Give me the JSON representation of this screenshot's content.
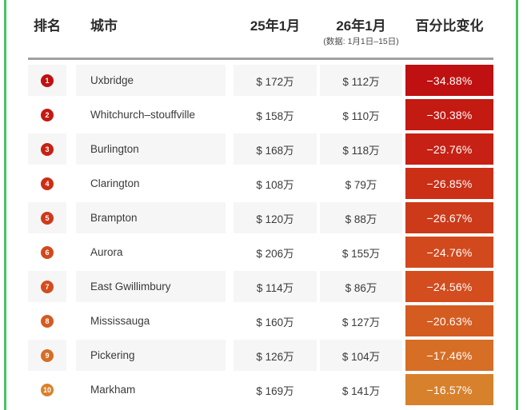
{
  "page": {
    "background": "#ffffff",
    "border_green": "#4ac263",
    "stripe_color": "#f6f6f6",
    "divider_color": "#a0a0a0"
  },
  "header": {
    "rank_label": "排名",
    "city_label": "城市",
    "jan25_label": "25年1月",
    "jan26_label": "26年1月",
    "jan26_note": "(数据: 1月1日–15日)",
    "pct_label": "百分比变化"
  },
  "table": {
    "rows": [
      {
        "rank": 1,
        "city": "Uxbridge",
        "jan25": "$ 172万",
        "jan26": "$ 112万",
        "pct": "−34.88%",
        "color": "#bf1111"
      },
      {
        "rank": 2,
        "city": "Whitchurch–stouffville",
        "jan25": "$ 158万",
        "jan26": "$ 110万",
        "pct": "−30.38%",
        "color": "#c31a12"
      },
      {
        "rank": 3,
        "city": "Burlington",
        "jan25": "$ 168万",
        "jan26": "$ 118万",
        "pct": "−29.76%",
        "color": "#c62114"
      },
      {
        "rank": 4,
        "city": "Clarington",
        "jan25": "$ 108万",
        "jan26": "$ 79万",
        "pct": "−26.85%",
        "color": "#cb2f16"
      },
      {
        "rank": 5,
        "city": "Brampton",
        "jan25": "$ 120万",
        "jan26": "$ 88万",
        "pct": "−26.67%",
        "color": "#cd3a1a"
      },
      {
        "rank": 6,
        "city": "Aurora",
        "jan25": "$ 206万",
        "jan26": "$ 155万",
        "pct": "−24.76%",
        "color": "#d2491d"
      },
      {
        "rank": 7,
        "city": "East Gwillimbury",
        "jan25": "$ 114万",
        "jan26": "$ 86万",
        "pct": "−24.56%",
        "color": "#d34d1e"
      },
      {
        "rank": 8,
        "city": "Mississauga",
        "jan25": "$ 160万",
        "jan26": "$ 127万",
        "pct": "−20.63%",
        "color": "#d45c20"
      },
      {
        "rank": 9,
        "city": "Pickering",
        "jan25": "$ 126万",
        "jan26": "$ 104万",
        "pct": "−17.46%",
        "color": "#d66e26"
      },
      {
        "rank": 10,
        "city": "Markham",
        "jan25": "$ 169万",
        "jan26": "$ 141万",
        "pct": "−16.57%",
        "color": "#d8812c"
      }
    ]
  },
  "chart_data": {
    "type": "table",
    "columns": [
      "排名",
      "城市",
      "25年1月",
      "26年1月 (数据: 1月1日–15日)",
      "百分比变化"
    ],
    "rows": [
      [
        1,
        "Uxbridge",
        "$ 172万",
        "$ 112万",
        "−34.88%"
      ],
      [
        2,
        "Whitchurch–stouffville",
        "$ 158万",
        "$ 110万",
        "−30.38%"
      ],
      [
        3,
        "Burlington",
        "$ 168万",
        "$ 118万",
        "−29.76%"
      ],
      [
        4,
        "Clarington",
        "$ 108万",
        "$ 79万",
        "−26.85%"
      ],
      [
        5,
        "Brampton",
        "$ 120万",
        "$ 88万",
        "−26.67%"
      ],
      [
        6,
        "Aurora",
        "$ 206万",
        "$ 155万",
        "−24.76%"
      ],
      [
        7,
        "East Gwillimbury",
        "$ 114万",
        "$ 86万",
        "−24.56%"
      ],
      [
        8,
        "Mississauga",
        "$ 160万",
        "$ 127万",
        "−20.63%"
      ],
      [
        9,
        "Pickering",
        "$ 126万",
        "$ 104万",
        "−17.46%"
      ],
      [
        10,
        "Markham",
        "$ 169万",
        "$ 141万",
        "−16.57%"
      ]
    ],
    "numeric": {
      "jan25_wan": [
        172,
        158,
        168,
        108,
        120,
        206,
        114,
        160,
        126,
        169
      ],
      "jan26_wan": [
        112,
        110,
        118,
        79,
        88,
        155,
        86,
        127,
        104,
        141
      ],
      "pct_change": [
        -34.88,
        -30.38,
        -29.76,
        -26.85,
        -26.67,
        -24.76,
        -24.56,
        -20.63,
        -17.46,
        -16.57
      ]
    },
    "color_scale": {
      "mapped_to": "pct_change",
      "most_negative_color": "#bf1111",
      "least_negative_color": "#d8812c"
    }
  }
}
